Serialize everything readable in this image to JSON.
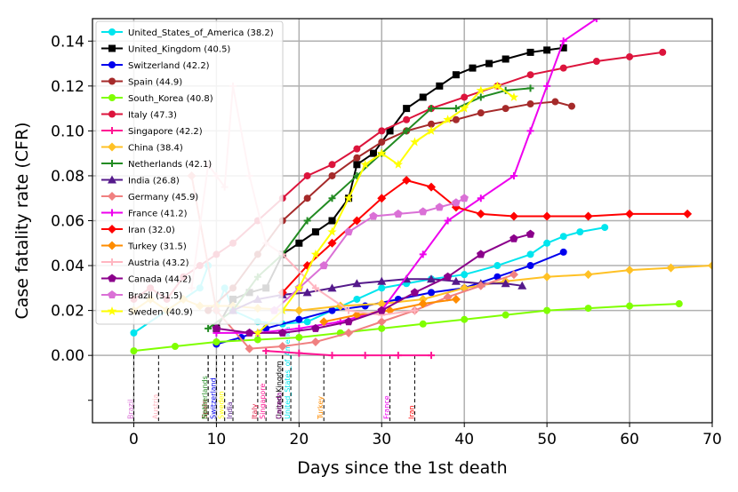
{
  "chart_data": {
    "type": "line",
    "xlabel": "Days since the 1st death",
    "ylabel": "Case fatality rate (CFR)",
    "xlim": [
      -5,
      70
    ],
    "ylim": [
      -0.03,
      0.15
    ],
    "xticks": [
      "0",
      "10",
      "20",
      "30",
      "40",
      "50",
      "60",
      "70"
    ],
    "yticks": [
      "0.00",
      "0.02",
      "0.04",
      "0.06",
      "0.08",
      "0.10",
      "0.12",
      "0.14"
    ],
    "grid": true,
    "legend_position": "top-left",
    "series": [
      {
        "name": "United_States_of_America (38.2)",
        "color": "#00e5ee",
        "marker": "circle",
        "x": [
          0,
          4,
          8,
          9,
          10,
          11,
          12,
          15,
          18,
          21,
          24,
          27,
          30,
          33,
          36,
          40,
          44,
          48,
          50,
          52,
          54,
          57
        ],
        "y": [
          0.01,
          0.02,
          0.03,
          0.04,
          0.02,
          0.03,
          0.02,
          0.015,
          0.014,
          0.015,
          0.02,
          0.025,
          0.03,
          0.032,
          0.034,
          0.036,
          0.04,
          0.045,
          0.05,
          0.053,
          0.055,
          0.057
        ]
      },
      {
        "name": "United_Kingdom (40.5)",
        "color": "#000000",
        "marker": "square",
        "x": [
          10,
          12,
          14,
          16,
          18,
          20,
          22,
          24,
          26,
          27,
          29,
          31,
          33,
          35,
          37,
          39,
          41,
          43,
          45,
          48,
          50,
          52
        ],
        "y": [
          0.012,
          0.025,
          0.028,
          0.03,
          0.045,
          0.05,
          0.055,
          0.06,
          0.07,
          0.085,
          0.09,
          0.1,
          0.11,
          0.115,
          0.12,
          0.125,
          0.128,
          0.13,
          0.132,
          0.135,
          0.136,
          0.137
        ]
      },
      {
        "name": "Switzerland (42.2)",
        "color": "#0000ee",
        "marker": "circle",
        "x": [
          10,
          13,
          16,
          20,
          24,
          28,
          32,
          36,
          40,
          44,
          48,
          52
        ],
        "y": [
          0.005,
          0.008,
          0.012,
          0.016,
          0.02,
          0.022,
          0.025,
          0.028,
          0.03,
          0.035,
          0.04,
          0.046
        ]
      },
      {
        "name": "Spain (44.9)",
        "color": "#a52a2a",
        "marker": "circle",
        "x": [
          9,
          12,
          15,
          18,
          21,
          24,
          27,
          30,
          33,
          36,
          39,
          42,
          45,
          48,
          51,
          53
        ],
        "y": [
          0.02,
          0.03,
          0.045,
          0.06,
          0.07,
          0.08,
          0.088,
          0.095,
          0.1,
          0.103,
          0.105,
          0.108,
          0.11,
          0.112,
          0.113,
          0.111
        ]
      },
      {
        "name": "South_Korea (40.8)",
        "color": "#7fff00",
        "marker": "circle",
        "x": [
          0,
          5,
          10,
          15,
          20,
          25,
          30,
          35,
          40,
          45,
          50,
          55,
          60,
          66
        ],
        "y": [
          0.002,
          0.004,
          0.006,
          0.007,
          0.008,
          0.01,
          0.012,
          0.014,
          0.016,
          0.018,
          0.02,
          0.021,
          0.022,
          0.023
        ]
      },
      {
        "name": "Italy (47.3)",
        "color": "#dc143c",
        "marker": "circle",
        "x": [
          0,
          2,
          4,
          6,
          8,
          10,
          12,
          15,
          18,
          21,
          24,
          27,
          30,
          33,
          36,
          40,
          44,
          48,
          52,
          56,
          60,
          64
        ],
        "y": [
          0.025,
          0.03,
          0.025,
          0.035,
          0.04,
          0.045,
          0.05,
          0.06,
          0.07,
          0.08,
          0.085,
          0.092,
          0.1,
          0.105,
          0.11,
          0.115,
          0.12,
          0.125,
          0.128,
          0.131,
          0.133,
          0.135
        ]
      },
      {
        "name": "Singapore (42.2)",
        "color": "#ff1493",
        "marker": "plus",
        "x": [
          16,
          20,
          24,
          28,
          32,
          36
        ],
        "y": [
          0.002,
          0.001,
          0.0,
          0.0,
          0.0,
          0.0
        ]
      },
      {
        "name": "China (38.4)",
        "color": "#ffc125",
        "marker": "diamond",
        "x": [
          0,
          2,
          4,
          6,
          8,
          10,
          12,
          15,
          20,
          25,
          30,
          35,
          40,
          45,
          50,
          55,
          60,
          65,
          70
        ],
        "y": [
          0.02,
          0.025,
          0.02,
          0.025,
          0.022,
          0.022,
          0.022,
          0.021,
          0.02,
          0.022,
          0.023,
          0.025,
          0.03,
          0.033,
          0.035,
          0.036,
          0.038,
          0.039,
          0.04
        ]
      },
      {
        "name": "Netherlands (42.1)",
        "color": "#228b22",
        "marker": "plus",
        "x": [
          9,
          12,
          15,
          18,
          21,
          24,
          27,
          30,
          33,
          36,
          39,
          42,
          45,
          48
        ],
        "y": [
          0.012,
          0.02,
          0.035,
          0.045,
          0.06,
          0.07,
          0.08,
          0.09,
          0.1,
          0.11,
          0.11,
          0.115,
          0.118,
          0.119
        ]
      },
      {
        "name": "India (26.8)",
        "color": "#551a8b",
        "marker": "triangle",
        "x": [
          12,
          15,
          18,
          21,
          24,
          27,
          30,
          33,
          36,
          39,
          42,
          45,
          47
        ],
        "y": [
          0.02,
          0.025,
          0.027,
          0.028,
          0.03,
          0.032,
          0.033,
          0.034,
          0.034,
          0.033,
          0.032,
          0.032,
          0.031
        ]
      },
      {
        "name": "Germany (45.9)",
        "color": "#f08080",
        "marker": "diamond",
        "x": [
          7,
          10,
          14,
          18,
          22,
          26,
          30,
          34,
          38,
          42,
          46
        ],
        "y": [
          0.08,
          0.02,
          0.003,
          0.004,
          0.006,
          0.01,
          0.015,
          0.02,
          0.026,
          0.031,
          0.036
        ]
      },
      {
        "name": "France (41.2)",
        "color": "#ee00ee",
        "marker": "plus",
        "x": [
          10,
          15,
          20,
          25,
          30,
          35,
          38,
          42,
          46,
          48,
          50,
          52,
          56
        ],
        "y": [
          0.01,
          0.01,
          0.012,
          0.015,
          0.02,
          0.045,
          0.06,
          0.07,
          0.08,
          0.1,
          0.12,
          0.14,
          0.15
        ]
      },
      {
        "name": "Iran (32.0)",
        "color": "#ff0000",
        "marker": "diamond",
        "x": [
          18,
          21,
          24,
          27,
          30,
          33,
          36,
          39,
          42,
          46,
          50,
          55,
          60,
          67
        ],
        "y": [
          0.028,
          0.04,
          0.05,
          0.06,
          0.07,
          0.078,
          0.075,
          0.066,
          0.063,
          0.062,
          0.062,
          0.062,
          0.063,
          0.063
        ]
      },
      {
        "name": "Turkey (31.5)",
        "color": "#ff8c00",
        "marker": "diamond",
        "x": [
          23,
          27,
          31,
          35,
          39
        ],
        "y": [
          0.015,
          0.018,
          0.02,
          0.023,
          0.025
        ]
      },
      {
        "name": "Austria (43.2)",
        "color": "#ffb6c1",
        "marker": "plus",
        "x": [
          7,
          9,
          10,
          11,
          12,
          14,
          16,
          18,
          22,
          26,
          30,
          34
        ],
        "y": [
          0.03,
          0.085,
          0.08,
          0.075,
          0.12,
          0.08,
          0.05,
          0.045,
          0.03,
          0.02,
          0.018,
          0.02
        ]
      },
      {
        "name": "Canada (44.2)",
        "color": "#8b008b",
        "marker": "pentagon",
        "x": [
          10,
          14,
          18,
          22,
          26,
          30,
          34,
          38,
          42,
          46,
          48
        ],
        "y": [
          0.012,
          0.01,
          0.01,
          0.012,
          0.015,
          0.02,
          0.028,
          0.035,
          0.045,
          0.052,
          0.054
        ]
      },
      {
        "name": "Brazil (31.5)",
        "color": "#da70d6",
        "marker": "pentagon",
        "x": [
          17,
          20,
          23,
          26,
          29,
          32,
          35,
          37,
          39,
          40
        ],
        "y": [
          0.02,
          0.03,
          0.04,
          0.055,
          0.062,
          0.063,
          0.064,
          0.066,
          0.068,
          0.07
        ]
      },
      {
        "name": "Sweden (40.9)",
        "color": "#ffff00",
        "marker": "star",
        "x": [
          15,
          18,
          20,
          22,
          24,
          26,
          28,
          30,
          32,
          34,
          36,
          38,
          40,
          42,
          44,
          46
        ],
        "y": [
          0.01,
          0.02,
          0.03,
          0.045,
          0.055,
          0.07,
          0.085,
          0.09,
          0.085,
          0.095,
          0.1,
          0.105,
          0.11,
          0.118,
          0.12,
          0.115
        ]
      }
    ],
    "events": [
      {
        "label": "Brazil",
        "day": 0,
        "color": "#da70d6"
      },
      {
        "label": "Austria",
        "day": 3,
        "color": "#ffb6c1"
      },
      {
        "label": "Spain",
        "day": 9,
        "color": "#a52a2a"
      },
      {
        "label": "Netherlands",
        "day": 9,
        "color": "#228b22"
      },
      {
        "label": "Switzerland",
        "day": 10,
        "color": "#0000ee"
      },
      {
        "label": "Sweden",
        "day": 11,
        "color": "#ffff00"
      },
      {
        "label": "India",
        "day": 12,
        "color": "#551a8b"
      },
      {
        "label": "Italy",
        "day": 15,
        "color": "#dc143c"
      },
      {
        "label": "Singapore",
        "day": 16,
        "color": "#ff1493"
      },
      {
        "label": "United_Kingdom",
        "day": 18,
        "color": "#000000"
      },
      {
        "label": "Canada",
        "day": 18,
        "color": "#8b008b"
      },
      {
        "label": "United_States_of_America",
        "day": 19,
        "color": "#00e5ee"
      },
      {
        "label": "Turkey",
        "day": 23,
        "color": "#ff8c00"
      },
      {
        "label": "France",
        "day": 31,
        "color": "#ee00ee"
      },
      {
        "label": "Iran",
        "day": 34,
        "color": "#ff0000"
      }
    ]
  }
}
